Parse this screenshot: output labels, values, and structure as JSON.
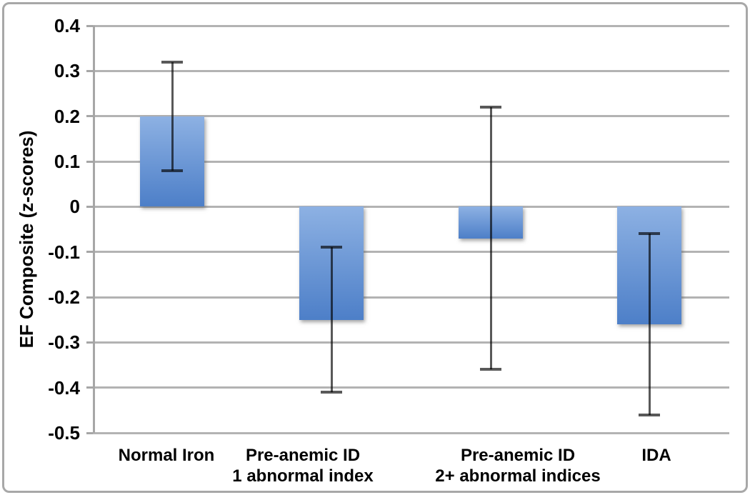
{
  "chart_data": {
    "type": "bar",
    "title": "",
    "ylabel": "EF Composite (z-scores)",
    "xlabel": "",
    "categories": [
      "Normal Iron",
      "Pre-anemic ID 1 abnormal index",
      "Pre-anemic ID 2+ abnormal indices",
      "IDA"
    ],
    "category_lines": [
      [
        "Normal Iron"
      ],
      [
        "Pre-anemic ID",
        "1 abnormal index"
      ],
      [
        "Pre-anemic ID",
        "2+ abnormal indices"
      ],
      [
        "IDA"
      ]
    ],
    "values": [
      0.2,
      -0.25,
      -0.07,
      -0.26
    ],
    "error_bars": {
      "upper": [
        0.32,
        -0.09,
        0.22,
        -0.06
      ],
      "lower": [
        0.08,
        -0.41,
        -0.36,
        -0.46
      ]
    },
    "ylim": [
      -0.5,
      0.4
    ],
    "yticks": [
      0.4,
      0.3,
      0.2,
      0.1,
      0,
      -0.1,
      -0.2,
      -0.3,
      -0.4,
      -0.5
    ],
    "ytick_labels": [
      "0.4",
      "0.3",
      "0.2",
      "0.1",
      "0",
      "-0.1",
      "-0.2",
      "-0.3",
      "-0.4",
      "-0.5"
    ],
    "grid": true,
    "legend": false,
    "colors": {
      "bar_gradient_top": "#8db1e3",
      "bar_gradient_bottom": "#4d7fc8",
      "error_bar": "#595959",
      "gridline": "#b3b3b3",
      "axis_line": "#a6a6a6",
      "tick_label": "#000000",
      "figure_border": "#a8a8a8",
      "background": "#ffffff"
    }
  }
}
